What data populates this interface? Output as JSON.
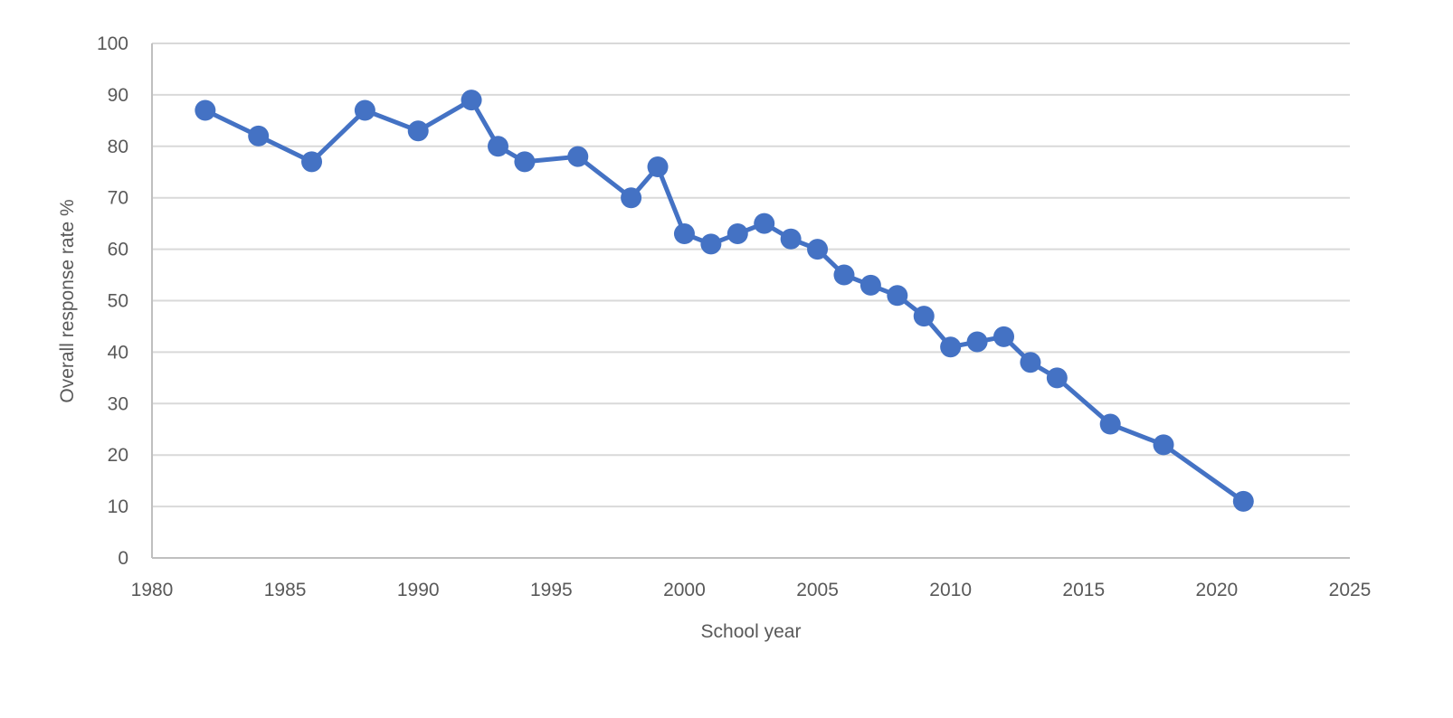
{
  "chart_data": {
    "type": "line",
    "title": "",
    "xlabel": "School year",
    "ylabel": "Overall response rate %",
    "xlim": [
      1980,
      2025
    ],
    "ylim": [
      0,
      100
    ],
    "x_ticks": [
      1980,
      1985,
      1990,
      1995,
      2000,
      2005,
      2010,
      2015,
      2020,
      2025
    ],
    "y_ticks": [
      0,
      10,
      20,
      30,
      40,
      50,
      60,
      70,
      80,
      90,
      100
    ],
    "grid": "horizontal",
    "legend": "none",
    "series": [
      {
        "color": "#4472c4",
        "marker": "circle",
        "x": [
          1982,
          1984,
          1986,
          1988,
          1990,
          1992,
          1993,
          1994,
          1996,
          1998,
          1999,
          2000,
          2001,
          2002,
          2003,
          2004,
          2005,
          2006,
          2007,
          2008,
          2009,
          2010,
          2011,
          2012,
          2013,
          2014,
          2016,
          2018,
          2021
        ],
        "values": [
          87,
          82,
          77,
          87,
          83,
          89,
          80,
          77,
          78,
          70,
          76,
          63,
          61,
          63,
          65,
          62,
          60,
          55,
          53,
          51,
          47,
          41,
          42,
          43,
          38,
          35,
          26,
          22,
          11
        ]
      }
    ],
    "colors": {
      "gridline": "#d9d9d9",
      "axis": "#bfbfbf",
      "text": "#595959"
    }
  }
}
